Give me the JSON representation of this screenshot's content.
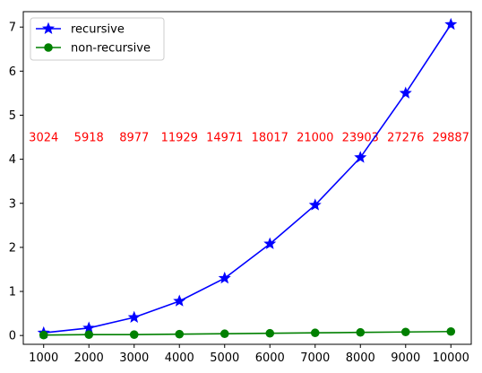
{
  "chart_data": {
    "type": "line",
    "title": "",
    "xlabel": "",
    "ylabel": "",
    "x": [
      1000,
      2000,
      3000,
      4000,
      5000,
      6000,
      7000,
      8000,
      9000,
      10000
    ],
    "xlim": [
      550,
      10450
    ],
    "ylim": [
      -0.2,
      7.35
    ],
    "xticks": [
      1000,
      2000,
      3000,
      4000,
      5000,
      6000,
      7000,
      8000,
      9000,
      10000
    ],
    "yticks": [
      0,
      1,
      2,
      3,
      4,
      5,
      6,
      7
    ],
    "grid": false,
    "legend_position": "top-left",
    "series": [
      {
        "name": "recursive",
        "color": "#0000ff",
        "marker": "star",
        "values": [
          0.06,
          0.17,
          0.41,
          0.78,
          1.3,
          2.08,
          2.96,
          4.04,
          5.5,
          7.06
        ]
      },
      {
        "name": "non-recursive",
        "color": "#008000",
        "marker": "circle",
        "values": [
          0.01,
          0.02,
          0.02,
          0.03,
          0.04,
          0.05,
          0.06,
          0.07,
          0.08,
          0.09
        ]
      }
    ],
    "annotations": {
      "color": "#ff0000",
      "y": 4.5,
      "labels": [
        "3024",
        "5918",
        "8977",
        "11929",
        "14971",
        "18017",
        "21000",
        "23903",
        "27276",
        "29887"
      ]
    }
  }
}
